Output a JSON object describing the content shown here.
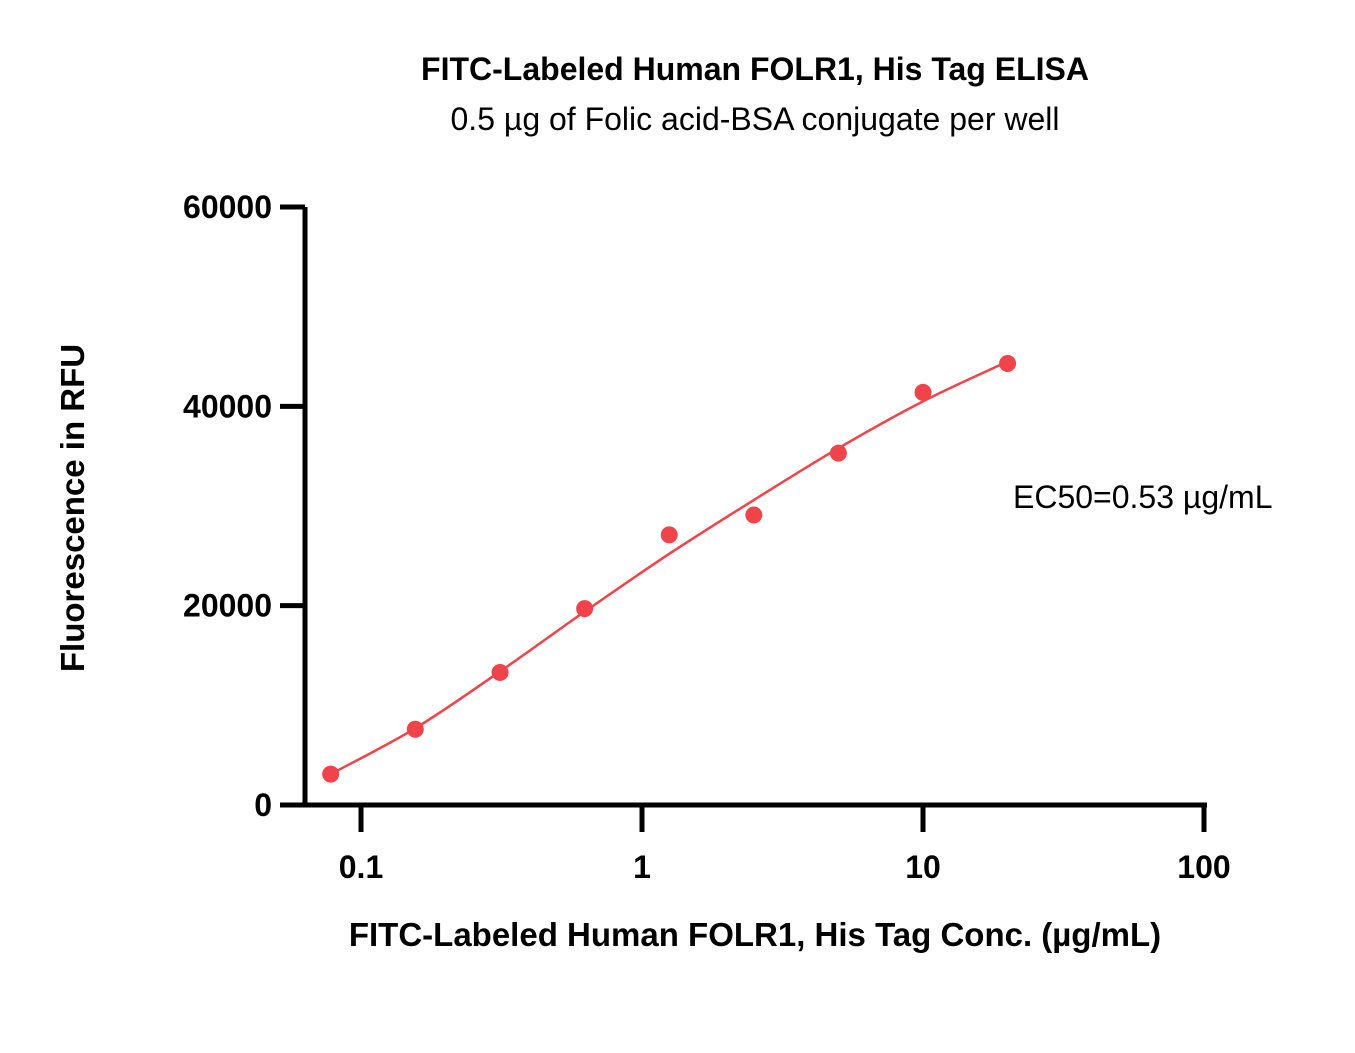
{
  "chart_data": {
    "type": "scatter",
    "title": "FITC-Labeled Human FOLR1, His Tag  ELISA",
    "subtitle": "0.5 µg of Folic acid-BSA conjugate per well",
    "xlabel": "FITC-Labeled Human FOLR1, His Tag  Conc. (µg/mL)",
    "ylabel": "Fluorescence in RFU",
    "x_scale": "log",
    "xlim": [
      0.07,
      100
    ],
    "ylim": [
      0,
      60000
    ],
    "x_ticks": [
      0.1,
      1,
      10,
      100
    ],
    "x_tick_labels": [
      "0.1",
      "1",
      "10",
      "100"
    ],
    "y_ticks": [
      0,
      20000,
      40000,
      60000
    ],
    "y_tick_labels": [
      "0",
      "20000",
      "40000",
      "60000"
    ],
    "grid": false,
    "legend": "none",
    "color": "#f0434a",
    "series": [
      {
        "x": [
          0.078,
          0.156,
          0.3125,
          0.625,
          1.25,
          2.5,
          5,
          10,
          20
        ],
        "y": [
          3100,
          7600,
          13300,
          19700,
          27100,
          29100,
          35300,
          41400,
          44300
        ]
      }
    ],
    "fit_curve": {
      "x": [
        0.078,
        0.156,
        0.3125,
        0.625,
        1.25,
        2.5,
        5,
        10,
        20
      ],
      "y": [
        3100,
        7700,
        13400,
        19400,
        25200,
        30600,
        35800,
        40500,
        44500
      ]
    },
    "annotation": "EC50=0.53 µg/mL"
  }
}
